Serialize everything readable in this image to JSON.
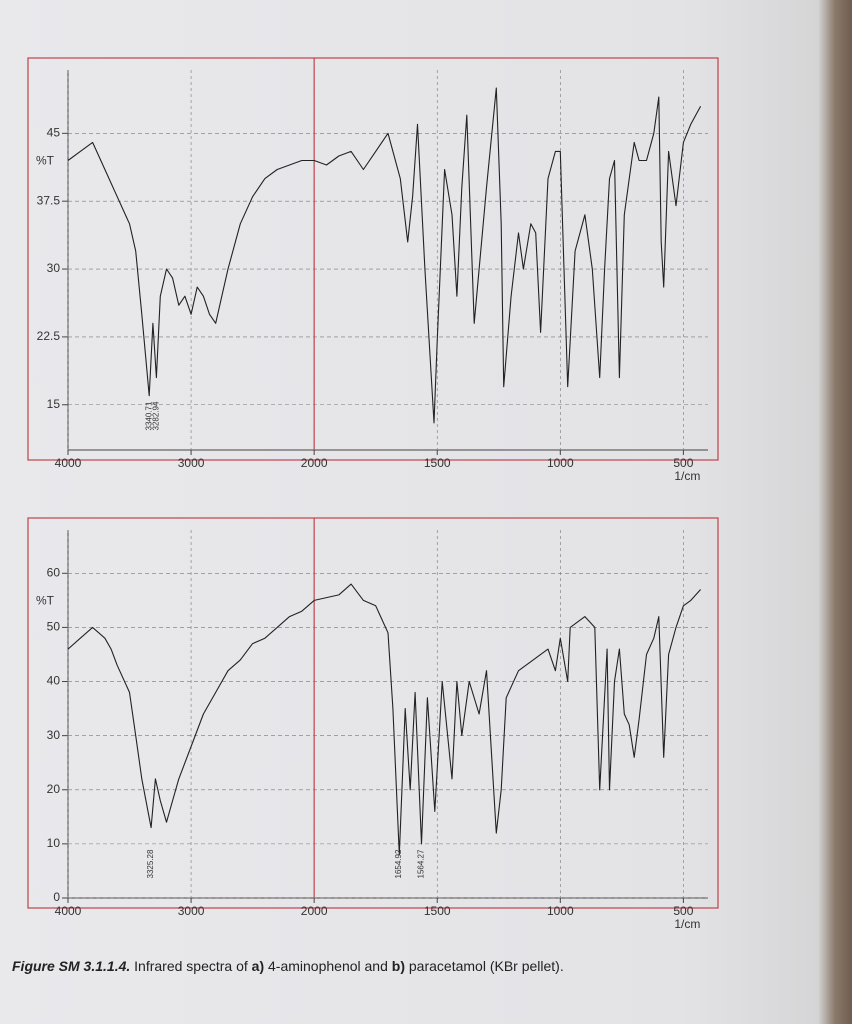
{
  "chart_data": [
    {
      "type": "line",
      "ylabel": "%T",
      "xlabel": "1/cm",
      "xlim": [
        4000,
        400
      ],
      "x_scale_break": 2000,
      "ylim": [
        10,
        52
      ],
      "xticks": [
        4000,
        3000,
        2000,
        1500,
        1000,
        500
      ],
      "yticks": [
        15,
        22.5,
        30,
        37.5,
        45
      ],
      "grid": true,
      "frame_color": "#c0434b",
      "x": [
        4000,
        3900,
        3800,
        3700,
        3600,
        3500,
        3450,
        3400,
        3340,
        3310,
        3282,
        3250,
        3200,
        3150,
        3100,
        3050,
        3000,
        2950,
        2900,
        2850,
        2800,
        2750,
        2700,
        2600,
        2500,
        2400,
        2300,
        2200,
        2100,
        2000,
        1950,
        1900,
        1850,
        1800,
        1750,
        1700,
        1650,
        1620,
        1600,
        1580,
        1550,
        1513,
        1500,
        1470,
        1440,
        1420,
        1400,
        1380,
        1350,
        1300,
        1260,
        1240,
        1230,
        1200,
        1170,
        1150,
        1120,
        1100,
        1080,
        1050,
        1020,
        1000,
        970,
        940,
        900,
        870,
        840,
        820,
        800,
        780,
        760,
        740,
        700,
        680,
        650,
        620,
        600,
        590,
        580,
        560,
        530,
        500,
        470,
        430
      ],
      "series": [
        {
          "color": "#222222",
          "values": [
            42,
            43,
            44,
            41,
            38,
            35,
            32,
            25,
            16,
            24,
            18,
            27,
            30,
            29,
            26,
            27,
            25,
            28,
            27,
            25,
            24,
            27,
            30,
            35,
            38,
            40,
            41,
            41.5,
            42,
            42,
            41.5,
            42.5,
            43,
            41,
            43,
            45,
            40,
            33,
            38,
            46,
            30,
            13,
            22,
            41,
            36,
            27,
            39,
            47,
            24,
            39,
            50,
            35,
            17,
            27,
            34,
            30,
            35,
            34,
            23,
            40,
            43,
            43,
            17,
            32,
            36,
            30,
            18,
            30,
            40,
            42,
            18,
            36,
            44,
            42,
            42,
            45,
            49,
            33,
            28,
            43,
            37,
            44,
            46,
            48
          ]
        }
      ],
      "peak_labels": [
        3340.71,
        3282.94
      ]
    },
    {
      "type": "line",
      "ylabel": "%T",
      "xlabel": "1/cm",
      "xlim": [
        4000,
        400
      ],
      "x_scale_break": 2000,
      "ylim": [
        0,
        68
      ],
      "xticks": [
        4000,
        3000,
        2000,
        1500,
        1000,
        500
      ],
      "yticks": [
        0,
        10,
        20,
        30,
        40,
        50,
        60
      ],
      "grid": true,
      "frame_color": "#c0434b",
      "x": [
        4000,
        3900,
        3800,
        3700,
        3650,
        3600,
        3500,
        3450,
        3400,
        3325,
        3290,
        3250,
        3200,
        3150,
        3100,
        3000,
        2900,
        2800,
        2700,
        2600,
        2500,
        2400,
        2300,
        2200,
        2100,
        2000,
        1900,
        1850,
        1800,
        1750,
        1700,
        1680,
        1654,
        1630,
        1610,
        1590,
        1564,
        1540,
        1510,
        1480,
        1440,
        1420,
        1400,
        1370,
        1330,
        1300,
        1260,
        1240,
        1220,
        1170,
        1110,
        1050,
        1020,
        1000,
        970,
        960,
        900,
        860,
        840,
        810,
        800,
        780,
        760,
        740,
        720,
        700,
        680,
        650,
        620,
        600,
        580,
        560,
        530,
        500,
        470,
        430
      ],
      "series": [
        {
          "color": "#222222",
          "values": [
            46,
            48,
            50,
            48,
            46,
            43,
            38,
            30,
            22,
            13,
            22,
            18,
            14,
            18,
            22,
            28,
            34,
            38,
            42,
            44,
            47,
            48,
            50,
            52,
            53,
            55,
            56,
            58,
            55,
            54,
            49,
            35,
            8,
            35,
            20,
            38,
            10,
            37,
            16,
            40,
            22,
            40,
            30,
            40,
            34,
            42,
            12,
            20,
            37,
            42,
            44,
            46,
            42,
            48,
            40,
            50,
            52,
            50,
            20,
            46,
            20,
            40,
            46,
            34,
            32,
            26,
            33,
            45,
            48,
            52,
            26,
            45,
            50,
            54,
            55,
            57
          ]
        }
      ],
      "peak_labels": [
        3325.28,
        1654.92,
        1564.27
      ]
    }
  ],
  "caption": [
    "Figure SM 3.1.1.4.",
    "Infrared spectra of",
    "a)",
    "4-aminophenol and",
    "b)",
    "paracetamol (KBr pellet)."
  ]
}
